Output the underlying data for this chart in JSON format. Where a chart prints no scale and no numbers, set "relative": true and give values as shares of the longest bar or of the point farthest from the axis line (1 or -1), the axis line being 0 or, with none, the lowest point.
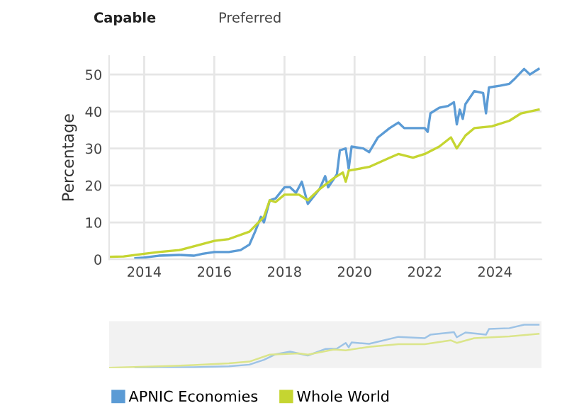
{
  "chart_data": [
    {
      "type": "line",
      "ylabel": "Percentage",
      "annotations": [
        "Capable",
        "Preferred"
      ],
      "xlim": [
        "2013-01",
        "2025-05"
      ],
      "xticks": [
        "2014",
        "2016",
        "2018",
        "2020",
        "2022",
        "2024"
      ],
      "ylim": [
        0,
        55
      ],
      "yticks": [
        0,
        10,
        20,
        30,
        40,
        50
      ],
      "grid": true,
      "legend": "bottom",
      "marker": "none",
      "line_style": "solid",
      "series": [
        {
          "name": "APNIC Economies",
          "color": "#5b9bd5",
          "x": [
            "2013-10",
            "2014-01",
            "2014-06",
            "2015-01",
            "2015-06",
            "2015-09",
            "2016-01",
            "2016-06",
            "2016-10",
            "2017-01",
            "2017-03",
            "2017-05",
            "2017-06",
            "2017-08",
            "2017-10",
            "2018-01",
            "2018-03",
            "2018-05",
            "2018-07",
            "2018-09",
            "2018-11",
            "2019-01",
            "2019-03",
            "2019-04",
            "2019-07",
            "2019-08",
            "2019-10",
            "2019-11",
            "2019-12",
            "2020-04",
            "2020-06",
            "2020-09",
            "2021-01",
            "2021-04",
            "2021-06",
            "2022-01",
            "2022-02",
            "2022-03",
            "2022-06",
            "2022-09",
            "2022-11",
            "2022-12",
            "2023-01",
            "2023-02",
            "2023-03",
            "2023-06",
            "2023-09",
            "2023-10",
            "2023-11",
            "2024-03",
            "2024-06",
            "2024-08",
            "2024-11",
            "2025-01",
            "2025-04"
          ],
          "values": [
            0.3,
            0.5,
            1.0,
            1.2,
            1.0,
            1.5,
            2.0,
            2.0,
            2.5,
            4,
            7.5,
            11.5,
            10,
            16,
            16.5,
            19.5,
            19.5,
            18,
            21,
            15,
            17,
            19,
            22.5,
            19.5,
            23,
            29.5,
            30,
            24.5,
            30.5,
            30,
            29,
            33,
            35.5,
            37,
            35.5,
            35.5,
            34.5,
            39.5,
            41,
            41.5,
            42.5,
            36.5,
            40.5,
            38,
            42,
            45.5,
            45,
            39.5,
            46.5,
            47,
            47.5,
            49,
            51.5,
            50,
            51.5
          ]
        },
        {
          "name": "Whole World",
          "color": "#c5d531",
          "x": [
            "2013-01",
            "2013-06",
            "2014-01",
            "2014-06",
            "2015-01",
            "2015-06",
            "2016-01",
            "2016-06",
            "2017-01",
            "2017-06",
            "2017-08",
            "2017-10",
            "2018-01",
            "2018-06",
            "2018-09",
            "2019-01",
            "2019-06",
            "2019-09",
            "2019-10",
            "2019-11",
            "2020-06",
            "2021-01",
            "2021-04",
            "2021-09",
            "2022-01",
            "2022-06",
            "2022-10",
            "2022-12",
            "2023-03",
            "2023-06",
            "2023-12",
            "2024-06",
            "2024-10",
            "2025-04"
          ],
          "values": [
            0.7,
            0.8,
            1.5,
            2,
            2.5,
            3.5,
            5,
            5.5,
            7.5,
            11.5,
            16,
            15.5,
            17.5,
            17.5,
            16,
            19,
            22,
            23.5,
            21,
            24,
            25,
            27.5,
            28.5,
            27.5,
            28.5,
            30.5,
            33,
            30,
            33.5,
            35.5,
            36,
            37.5,
            39.5,
            40.5
          ]
        }
      ]
    },
    {
      "type": "line",
      "xlim": [
        "2013-01",
        "2025-05"
      ],
      "relative": true,
      "tick_labels": false,
      "series": [
        {
          "color": "#9dc3e6",
          "x": [
            "2013-10",
            "2014-06",
            "2015-06",
            "2016-06",
            "2017-01",
            "2017-06",
            "2017-10",
            "2018-03",
            "2018-09",
            "2019-03",
            "2019-07",
            "2019-10",
            "2019-11",
            "2019-12",
            "2020-06",
            "2021-04",
            "2022-01",
            "2022-03",
            "2022-11",
            "2022-12",
            "2023-03",
            "2023-10",
            "2023-11",
            "2024-06",
            "2024-11",
            "2025-04"
          ],
          "values": [
            0.01,
            0.02,
            0.02,
            0.04,
            0.08,
            0.19,
            0.32,
            0.38,
            0.29,
            0.44,
            0.45,
            0.58,
            0.48,
            0.59,
            0.56,
            0.72,
            0.69,
            0.77,
            0.83,
            0.71,
            0.82,
            0.77,
            0.9,
            0.92,
            1,
            1
          ]
        },
        {
          "color": "#dbe58a",
          "x": [
            "2013-01",
            "2014-06",
            "2015-06",
            "2016-06",
            "2017-01",
            "2017-08",
            "2018-06",
            "2018-09",
            "2019-06",
            "2019-10",
            "2020-06",
            "2021-04",
            "2022-01",
            "2022-10",
            "2022-12",
            "2023-06",
            "2024-06",
            "2025-04"
          ],
          "values": [
            0.01,
            0.04,
            0.07,
            0.11,
            0.15,
            0.31,
            0.34,
            0.31,
            0.43,
            0.41,
            0.49,
            0.55,
            0.55,
            0.64,
            0.58,
            0.69,
            0.73,
            0.79
          ]
        }
      ]
    }
  ]
}
